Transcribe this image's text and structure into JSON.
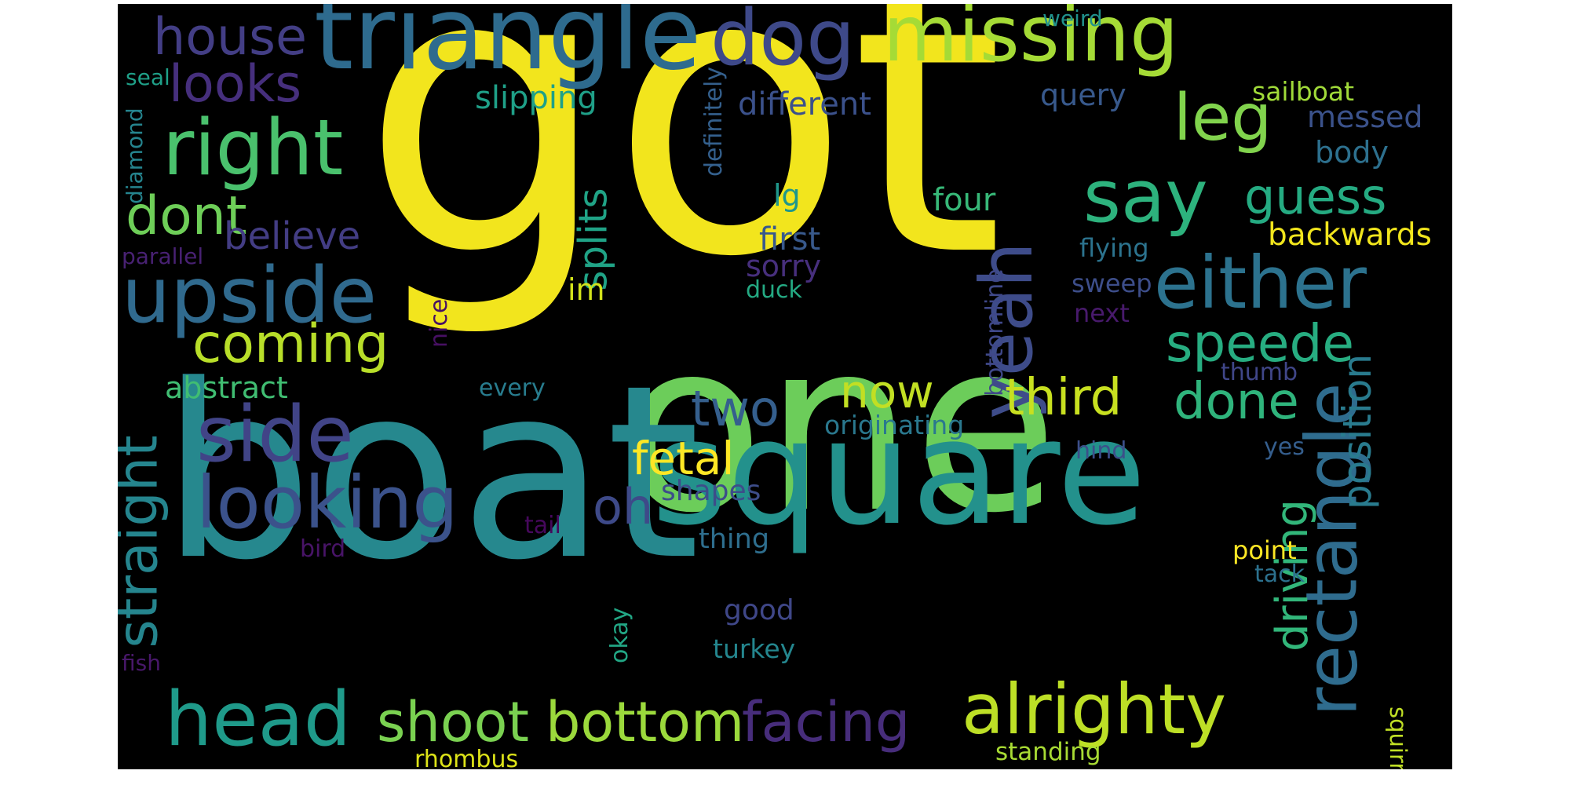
{
  "word_cloud": {
    "background": "#000000",
    "words": [
      {
        "text": "got",
        "color": "#f2e51d"
      },
      {
        "text": "one",
        "color": "#6ccd5a"
      },
      {
        "text": "boat",
        "color": "#26888e"
      },
      {
        "text": "square",
        "color": "#23918c"
      },
      {
        "text": "triangle",
        "color": "#2e6b8e"
      },
      {
        "text": "missing",
        "color": "#a5db36"
      },
      {
        "text": "dog",
        "color": "#3e4989"
      },
      {
        "text": "house",
        "color": "#433e85"
      },
      {
        "text": "looks",
        "color": "#462f7d"
      },
      {
        "text": "right",
        "color": "#4ac16d"
      },
      {
        "text": "dont",
        "color": "#6ece58"
      },
      {
        "text": "upside",
        "color": "#306a8e"
      },
      {
        "text": "side",
        "color": "#414487"
      },
      {
        "text": "looking",
        "color": "#3b528b"
      },
      {
        "text": "head",
        "color": "#1f9a8a"
      },
      {
        "text": "coming",
        "color": "#b8de29"
      },
      {
        "text": "believe",
        "color": "#433d84"
      },
      {
        "text": "abstract",
        "color": "#40bd72"
      },
      {
        "text": "straight",
        "color": "#25858e"
      },
      {
        "text": "shoot",
        "color": "#7ad151"
      },
      {
        "text": "bottom",
        "color": "#9bd93c"
      },
      {
        "text": "facing",
        "color": "#472d7b"
      },
      {
        "text": "alrighty",
        "color": "#bddf26"
      },
      {
        "text": "rectangle",
        "color": "#2f6c8e"
      },
      {
        "text": "yeah",
        "color": "#3e4c8a"
      },
      {
        "text": "say",
        "color": "#2db27d"
      },
      {
        "text": "either",
        "color": "#2c728e"
      },
      {
        "text": "leg",
        "color": "#81d34d"
      },
      {
        "text": "guess",
        "color": "#25ab82"
      },
      {
        "text": "speede",
        "color": "#27ad81"
      },
      {
        "text": "third",
        "color": "#c8e020"
      },
      {
        "text": "done",
        "color": "#2fb47c"
      },
      {
        "text": "now",
        "color": "#c2df23"
      },
      {
        "text": "two",
        "color": "#355f8d"
      },
      {
        "text": "fetal",
        "color": "#fde725"
      },
      {
        "text": "oh",
        "color": "#3e4a89"
      },
      {
        "text": "driving",
        "color": "#32b67a"
      },
      {
        "text": "position",
        "color": "#297b8e"
      },
      {
        "text": "splits",
        "color": "#20a386"
      },
      {
        "text": "slipping",
        "color": "#1fa088"
      },
      {
        "text": "different",
        "color": "#3b518b"
      },
      {
        "text": "query",
        "color": "#38598c"
      },
      {
        "text": "sailboat",
        "color": "#a0da39"
      },
      {
        "text": "messed",
        "color": "#3b528b"
      },
      {
        "text": "body",
        "color": "#2d708e"
      },
      {
        "text": "backwards",
        "color": "#f1e51d"
      },
      {
        "text": "flying",
        "color": "#2c738e"
      },
      {
        "text": "sweep",
        "color": "#3d4e8a"
      },
      {
        "text": "next",
        "color": "#481a6c"
      },
      {
        "text": "thumb",
        "color": "#404688"
      },
      {
        "text": "four",
        "color": "#37b878"
      },
      {
        "text": "lg",
        "color": "#1f978b"
      },
      {
        "text": "first",
        "color": "#38598c"
      },
      {
        "text": "sorry",
        "color": "#472f7d"
      },
      {
        "text": "duck",
        "color": "#24aa83"
      },
      {
        "text": "im",
        "color": "#d2e21b"
      },
      {
        "text": "definitely",
        "color": "#34608d"
      },
      {
        "text": "bottomline",
        "color": "#3f4889"
      },
      {
        "text": "nice",
        "color": "#471063"
      },
      {
        "text": "every",
        "color": "#287c8e"
      },
      {
        "text": "originating",
        "color": "#2a788e"
      },
      {
        "text": "hind",
        "color": "#3c4f8a"
      },
      {
        "text": "yes",
        "color": "#355e8d"
      },
      {
        "text": "shapes",
        "color": "#3d4d8a"
      },
      {
        "text": "thing",
        "color": "#2e6e8e"
      },
      {
        "text": "point",
        "color": "#fde725"
      },
      {
        "text": "tack",
        "color": "#2c718e"
      },
      {
        "text": "good",
        "color": "#3f4788"
      },
      {
        "text": "turkey",
        "color": "#24868e"
      },
      {
        "text": "okay",
        "color": "#22a785"
      },
      {
        "text": "rhombus",
        "color": "#dde318"
      },
      {
        "text": "standing",
        "color": "#a8db34"
      },
      {
        "text": "squirrel",
        "color": "#c0df25"
      },
      {
        "text": "weird",
        "color": "#21918c"
      },
      {
        "text": "seal",
        "color": "#1fa088"
      },
      {
        "text": "diamond",
        "color": "#25848e"
      },
      {
        "text": "parallel",
        "color": "#482173"
      },
      {
        "text": "tail",
        "color": "#46085c"
      },
      {
        "text": "bird",
        "color": "#481467"
      },
      {
        "text": "fish",
        "color": "#48186a"
      }
    ]
  }
}
